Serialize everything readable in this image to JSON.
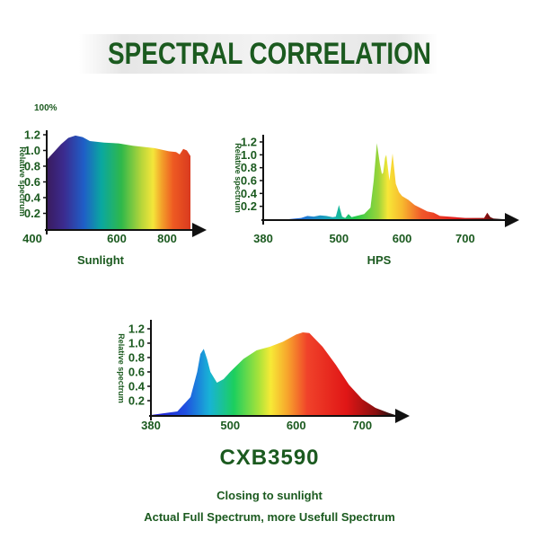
{
  "header": {
    "title": "SPECTRAL CORRELATION"
  },
  "colors": {
    "accent_green": "#1b5a1f",
    "axis": "#111111"
  },
  "chart_data": [
    {
      "type": "area",
      "title": "Sunlight",
      "ylabel": "Relative spectrum",
      "top_label": "100%",
      "xlim": [
        400,
        800
      ],
      "ylim": [
        0,
        1.2
      ],
      "x_ticks": [
        "400",
        "600",
        "800"
      ],
      "y_ticks": [
        "0.2",
        "0.4",
        "0.6",
        "0.8",
        "1.0",
        "1.2"
      ],
      "series": [
        {
          "x": [
            400,
            420,
            440,
            460,
            480,
            500,
            520,
            560,
            600,
            640,
            680,
            700,
            720,
            740,
            760,
            770,
            780,
            790,
            800
          ],
          "y": [
            0.88,
            0.98,
            1.08,
            1.16,
            1.19,
            1.17,
            1.12,
            1.1,
            1.09,
            1.06,
            1.04,
            1.03,
            1.01,
            0.99,
            0.98,
            0.95,
            1.02,
            1.0,
            0.93
          ]
        }
      ]
    },
    {
      "type": "area",
      "title": "HPS",
      "ylabel": "Relative spectrum",
      "xlim": [
        380,
        760
      ],
      "ylim": [
        0,
        1.2
      ],
      "x_ticks": [
        "380",
        "500",
        "600",
        "700"
      ],
      "y_ticks": [
        "0.2",
        "0.4",
        "0.6",
        "0.8",
        "1.0",
        "1.2"
      ],
      "series": [
        {
          "x": [
            380,
            420,
            440,
            450,
            460,
            470,
            480,
            490,
            495,
            500,
            505,
            510,
            515,
            520,
            540,
            550,
            555,
            560,
            565,
            568,
            570,
            573,
            575,
            580,
            585,
            590,
            595,
            600,
            610,
            620,
            640,
            650,
            660,
            700,
            730,
            735,
            740,
            745,
            760
          ],
          "y": [
            0.0,
            0.0,
            0.02,
            0.05,
            0.04,
            0.06,
            0.05,
            0.03,
            0.04,
            0.22,
            0.04,
            0.02,
            0.08,
            0.03,
            0.08,
            0.18,
            0.6,
            1.18,
            0.85,
            0.7,
            0.72,
            0.95,
            1.0,
            0.6,
            1.02,
            0.55,
            0.42,
            0.36,
            0.3,
            0.22,
            0.12,
            0.1,
            0.05,
            0.02,
            0.02,
            0.1,
            0.03,
            0.01,
            0.0
          ]
        }
      ]
    },
    {
      "type": "area",
      "title": "CXB3590",
      "ylabel": "Relative spectrum",
      "xlim": [
        380,
        750
      ],
      "ylim": [
        0,
        1.2
      ],
      "x_ticks": [
        "380",
        "500",
        "600",
        "700"
      ],
      "y_ticks": [
        "0.2",
        "0.4",
        "0.6",
        "0.8",
        "1.0",
        "1.2"
      ],
      "series": [
        {
          "x": [
            380,
            420,
            440,
            450,
            455,
            460,
            465,
            470,
            480,
            490,
            500,
            520,
            540,
            560,
            580,
            600,
            610,
            620,
            640,
            660,
            680,
            700,
            720,
            740,
            750
          ],
          "y": [
            0.0,
            0.05,
            0.25,
            0.6,
            0.85,
            0.92,
            0.78,
            0.6,
            0.45,
            0.5,
            0.6,
            0.78,
            0.9,
            0.95,
            1.02,
            1.12,
            1.15,
            1.14,
            0.95,
            0.7,
            0.42,
            0.22,
            0.1,
            0.03,
            0.0
          ]
        }
      ]
    }
  ],
  "captions": {
    "headline": "CXB3590",
    "line1": "Closing to sunlight",
    "line2": "Actual Full Spectrum, more Usefull Spectrum"
  }
}
